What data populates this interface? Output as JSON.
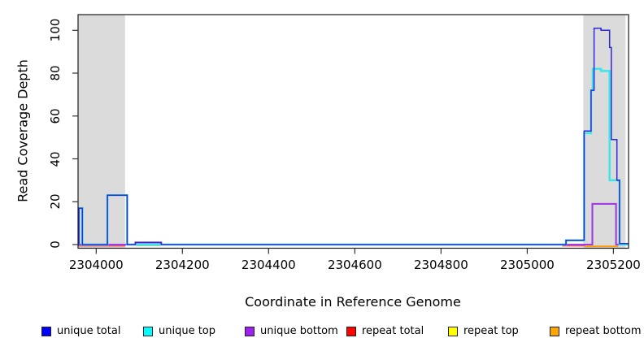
{
  "figure": {
    "y_axis": {
      "label": "Read Coverage Depth",
      "ticks": [
        0,
        20,
        40,
        60,
        80,
        100
      ]
    },
    "x_axis": {
      "label": "Coordinate in Reference Genome",
      "ticks": [
        2304000,
        2304200,
        2304400,
        2304600,
        2304800,
        2305000,
        2305200
      ]
    },
    "legend": [
      {
        "label": "unique total",
        "color": "#0000FF"
      },
      {
        "label": "unique top",
        "color": "#00FFFF"
      },
      {
        "label": "unique bottom",
        "color": "#A020F0"
      },
      {
        "label": "repeat total",
        "color": "#FF0000"
      },
      {
        "label": "repeat top",
        "color": "#FFFF00"
      },
      {
        "label": "repeat bottom",
        "color": "#FFA500"
      }
    ]
  },
  "chart_data": {
    "type": "line",
    "title": "",
    "xlabel": "Coordinate in Reference Genome",
    "ylabel": "Read Coverage Depth",
    "xlim": [
      2303958,
      2305235
    ],
    "ylim": [
      0,
      107
    ],
    "x_ticks": [
      2304000,
      2304200,
      2304400,
      2304600,
      2304800,
      2305000,
      2305200
    ],
    "y_ticks": [
      0,
      20,
      40,
      60,
      80,
      100
    ],
    "grid": false,
    "legend_position": "bottom",
    "shaded_regions": [
      {
        "x0": 2303958,
        "x1": 2304067,
        "color": "#DBDBDB"
      },
      {
        "x0": 2305130,
        "x1": 2305228,
        "color": "#DBDBDB"
      }
    ],
    "series": [
      {
        "name": "repeat total",
        "line_color": "#EA5864",
        "segments": [
          [
            [
              2303958,
              -0.6
            ],
            [
              2304068,
              -0.6
            ]
          ],
          [
            [
              2305081,
              -0.6
            ],
            [
              2305134,
              -0.6
            ]
          ]
        ]
      },
      {
        "name": "repeat top",
        "line_color": "#B5CCA2",
        "segments": [
          [
            [
              2304093,
              -0.5
            ],
            [
              2304149,
              -0.5
            ]
          ]
        ]
      },
      {
        "name": "repeat bottom",
        "line_color": "#FF9E00",
        "segments": [
          [
            [
              2305134,
              -0.85
            ],
            [
              2305211,
              -0.85
            ]
          ]
        ]
      },
      {
        "name": "unique bottom",
        "line_color": "#A03CE0",
        "segments": [
          [
            [
              2303958,
              0
            ],
            [
              2304091,
              0
            ],
            [
              2304091,
              1
            ],
            [
              2304151,
              1
            ],
            [
              2304151,
              0
            ],
            [
              2305151,
              0
            ],
            [
              2305151,
              19
            ],
            [
              2305206,
              19
            ],
            [
              2305206,
              0
            ],
            [
              2305235,
              0
            ]
          ]
        ]
      },
      {
        "name": "unique top",
        "line_color": "#3CE6E6",
        "segments": [
          [
            [
              2303958,
              0
            ],
            [
              2303960,
              0
            ],
            [
              2303960,
              17
            ],
            [
              2303968,
              17
            ],
            [
              2303968,
              0
            ],
            [
              2304026,
              0
            ],
            [
              2304026,
              23
            ],
            [
              2304072,
              23
            ],
            [
              2304072,
              0
            ],
            [
              2305090,
              0
            ],
            [
              2305090,
              2
            ],
            [
              2305132,
              2
            ],
            [
              2305132,
              52
            ],
            [
              2305148,
              52
            ],
            [
              2305148,
              72
            ],
            [
              2305152,
              72
            ],
            [
              2305152,
              82
            ],
            [
              2305171,
              82
            ],
            [
              2305171,
              81
            ],
            [
              2305191,
              81
            ],
            [
              2305191,
              30
            ],
            [
              2305214,
              30
            ],
            [
              2305214,
              0
            ],
            [
              2305235,
              0
            ]
          ]
        ]
      },
      {
        "name": "unique total",
        "line_color": "#2A2AD8",
        "segments": [
          [
            [
              2303958,
              0
            ],
            [
              2303960,
              0
            ],
            [
              2303960,
              17
            ],
            [
              2303968,
              17
            ],
            [
              2303968,
              0
            ],
            [
              2304026,
              0
            ],
            [
              2304026,
              23
            ],
            [
              2304072,
              23
            ],
            [
              2304072,
              0
            ],
            [
              2304091,
              0
            ],
            [
              2304091,
              1
            ],
            [
              2304151,
              1
            ],
            [
              2304151,
              0
            ],
            [
              2305090,
              0
            ],
            [
              2305090,
              2
            ],
            [
              2305132,
              2
            ],
            [
              2305132,
              53
            ],
            [
              2305148,
              53
            ],
            [
              2305148,
              72
            ],
            [
              2305155,
              72
            ],
            [
              2305155,
              101
            ],
            [
              2305171,
              101
            ],
            [
              2305171,
              100
            ],
            [
              2305191,
              100
            ],
            [
              2305191,
              92
            ],
            [
              2305195,
              92
            ],
            [
              2305195,
              49
            ],
            [
              2305208,
              49
            ],
            [
              2305208,
              30
            ],
            [
              2305214,
              30
            ],
            [
              2305214,
              0.5
            ],
            [
              2305235,
              0.5
            ]
          ]
        ]
      }
    ]
  }
}
